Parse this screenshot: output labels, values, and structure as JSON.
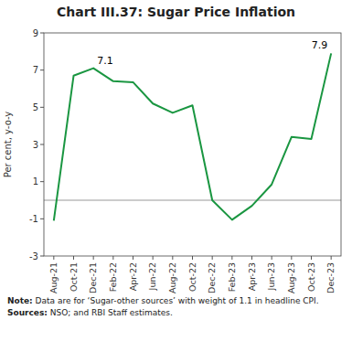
{
  "chart_data": {
    "type": "line",
    "title": "Chart III.37: Sugar Price Inflation",
    "y_label": "Per cent, y-o-y",
    "categories": [
      "Aug-21",
      "Oct-21",
      "Dec-21",
      "Feb-22",
      "Apr-22",
      "Jun-22",
      "Aug-22",
      "Oct-22",
      "Dec-22",
      "Feb-23",
      "Apr-23",
      "Jun-23",
      "Aug-23",
      "Oct-23",
      "Dec-23"
    ],
    "values": [
      -1.1,
      6.7,
      7.1,
      6.4,
      6.35,
      5.2,
      4.7,
      5.1,
      0.0,
      -1.05,
      -0.3,
      0.85,
      3.4,
      3.3,
      7.9
    ],
    "color": "#1a9641",
    "ylim": [
      -3,
      9
    ],
    "yticks": [
      -3,
      -1,
      1,
      3,
      5,
      7,
      9
    ],
    "grid": false,
    "reference_lines": [
      {
        "y": 0,
        "color": "#999999"
      }
    ],
    "annotations": [
      {
        "x": "Dec-21",
        "y": 7.1,
        "text": "7.1"
      },
      {
        "x": "Dec-23",
        "y": 7.9,
        "text": "7.9"
      }
    ],
    "notes": [
      {
        "label": "Note:",
        "text": "Data are for ‘Sugar-other sources’ with weight of 1.1 in headline CPI."
      },
      {
        "label": "Sources:",
        "text": "NSO; and RBI Staff estimates."
      }
    ]
  }
}
